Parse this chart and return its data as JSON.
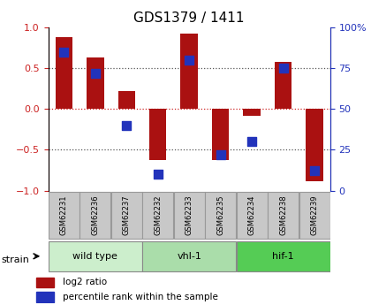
{
  "title": "GDS1379 / 1411",
  "samples": [
    "GSM62231",
    "GSM62236",
    "GSM62237",
    "GSM62232",
    "GSM62233",
    "GSM62235",
    "GSM62234",
    "GSM62238",
    "GSM62239"
  ],
  "log2_ratio": [
    0.88,
    0.63,
    0.22,
    -0.62,
    0.93,
    -0.62,
    -0.08,
    0.58,
    -0.88
  ],
  "percentile_rank": [
    85,
    72,
    40,
    10,
    80,
    22,
    30,
    75,
    12
  ],
  "groups": [
    {
      "label": "wild type",
      "start": 0,
      "end": 3,
      "color": "#cceecc"
    },
    {
      "label": "vhl-1",
      "start": 3,
      "end": 6,
      "color": "#aaddaa"
    },
    {
      "label": "hif-1",
      "start": 6,
      "end": 9,
      "color": "#55cc55"
    }
  ],
  "ylim_left": [
    -1,
    1
  ],
  "ylim_right": [
    0,
    100
  ],
  "bar_color": "#aa1111",
  "dot_color": "#2233bb",
  "zero_line_color": "#cc2222",
  "dotted_line_color": "#555555",
  "left_yticks": [
    -1,
    -0.5,
    0,
    0.5,
    1
  ],
  "right_yticks": [
    0,
    25,
    50,
    75,
    100
  ],
  "bar_width": 0.55,
  "dot_size": 55,
  "label_bg": "#c8c8c8",
  "label_border": "#999999"
}
